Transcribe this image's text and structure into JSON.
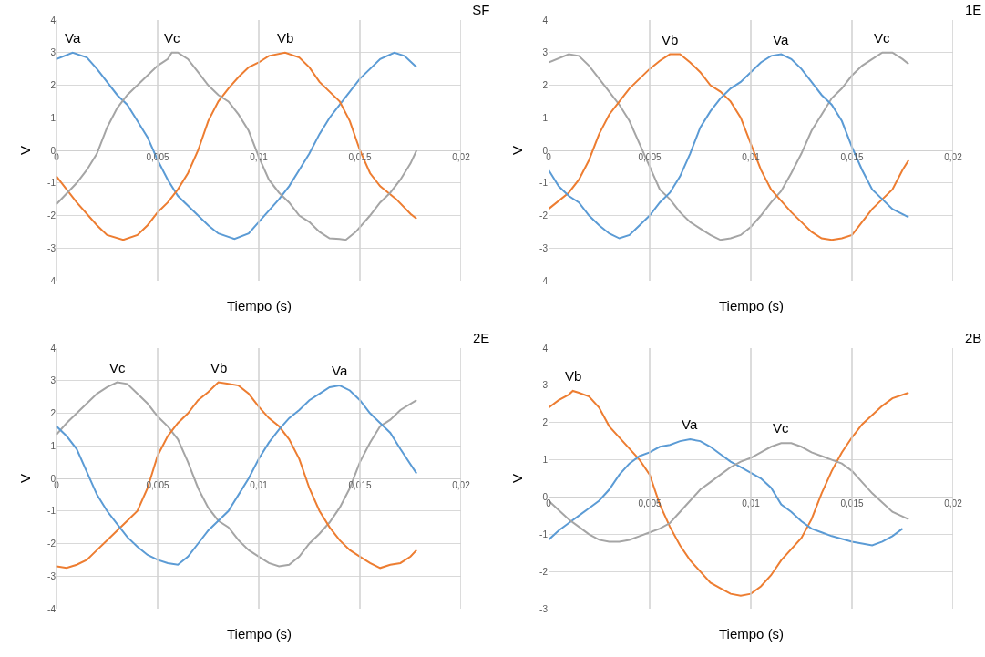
{
  "chart_data": [
    {
      "type": "line",
      "title": "SF",
      "xlabel": "Tiempo (s)",
      "ylabel": "V",
      "xlim": [
        0,
        0.02
      ],
      "xticks": [
        {
          "value": 0,
          "label": "0"
        },
        {
          "value": 0.005,
          "label": "0,005"
        },
        {
          "value": 0.01,
          "label": "0,01"
        },
        {
          "value": 0.015,
          "label": "0,015"
        },
        {
          "value": 0.02,
          "label": "0,02"
        }
      ],
      "ylim": [
        -4,
        4
      ],
      "yticks": [
        -4,
        -3,
        -2,
        -1,
        0,
        1,
        2,
        3,
        4
      ],
      "grid": true,
      "legend": false,
      "series": [
        {
          "name": "Va",
          "color": "#5b9bd5",
          "x": [
            0,
            0.0008,
            0.0015,
            0.002,
            0.003,
            0.0035,
            0.004,
            0.0045,
            0.005,
            0.0055,
            0.006,
            0.007,
            0.0075,
            0.008,
            0.0088,
            0.0095,
            0.01,
            0.011,
            0.0115,
            0.012,
            0.0125,
            0.013,
            0.0135,
            0.014,
            0.0145,
            0.015,
            0.0155,
            0.016,
            0.0167,
            0.0172,
            0.0178
          ],
          "values": [
            2.8,
            3.0,
            2.85,
            2.5,
            1.7,
            1.4,
            0.9,
            0.4,
            -0.3,
            -0.9,
            -1.4,
            -2.0,
            -2.3,
            -2.55,
            -2.72,
            -2.55,
            -2.2,
            -1.5,
            -1.1,
            -0.6,
            -0.1,
            0.5,
            1.0,
            1.4,
            1.8,
            2.2,
            2.5,
            2.8,
            3.0,
            2.9,
            2.55
          ]
        },
        {
          "name": "Vb",
          "color": "#ed7d31",
          "x": [
            0,
            0.001,
            0.002,
            0.0025,
            0.0033,
            0.004,
            0.0045,
            0.005,
            0.0055,
            0.006,
            0.0065,
            0.007,
            0.0075,
            0.008,
            0.0085,
            0.009,
            0.0095,
            0.01,
            0.0105,
            0.0113,
            0.012,
            0.0125,
            0.013,
            0.0135,
            0.014,
            0.0145,
            0.015,
            0.0155,
            0.016,
            0.0168,
            0.0175,
            0.0178
          ],
          "values": [
            -0.8,
            -1.6,
            -2.3,
            -2.6,
            -2.75,
            -2.6,
            -2.3,
            -1.9,
            -1.6,
            -1.2,
            -0.7,
            0.0,
            0.9,
            1.5,
            1.9,
            2.25,
            2.55,
            2.7,
            2.9,
            3.0,
            2.85,
            2.55,
            2.1,
            1.8,
            1.5,
            0.9,
            0.0,
            -0.7,
            -1.1,
            -1.5,
            -1.95,
            -2.1
          ]
        },
        {
          "name": "Vc",
          "color": "#a5a5a5",
          "x": [
            0,
            0.001,
            0.0015,
            0.002,
            0.0025,
            0.003,
            0.0035,
            0.004,
            0.0045,
            0.005,
            0.0055,
            0.0057,
            0.006,
            0.0065,
            0.007,
            0.0075,
            0.008,
            0.0085,
            0.009,
            0.0095,
            0.01,
            0.0105,
            0.011,
            0.0115,
            0.012,
            0.0125,
            0.013,
            0.0135,
            0.014,
            0.0143,
            0.0148,
            0.0155,
            0.016,
            0.0165,
            0.017,
            0.0175,
            0.0178
          ],
          "values": [
            -1.65,
            -1.0,
            -0.6,
            -0.1,
            0.7,
            1.3,
            1.7,
            2.0,
            2.3,
            2.6,
            2.8,
            3.0,
            3.0,
            2.8,
            2.4,
            2.0,
            1.7,
            1.5,
            1.1,
            0.6,
            -0.2,
            -0.9,
            -1.3,
            -1.6,
            -2.0,
            -2.2,
            -2.5,
            -2.7,
            -2.72,
            -2.75,
            -2.5,
            -2.0,
            -1.6,
            -1.3,
            -0.9,
            -0.4,
            0.0
          ]
        }
      ]
    },
    {
      "type": "line",
      "title": "1E",
      "xlabel": "Tiempo (s)",
      "ylabel": "V",
      "xlim": [
        0,
        0.02
      ],
      "xticks": [
        {
          "value": 0,
          "label": "0"
        },
        {
          "value": 0.005,
          "label": "0,005"
        },
        {
          "value": 0.01,
          "label": "0,01"
        },
        {
          "value": 0.015,
          "label": "0,015"
        },
        {
          "value": 0.02,
          "label": "0,02"
        }
      ],
      "ylim": [
        -4,
        4
      ],
      "yticks": [
        -4,
        -3,
        -2,
        -1,
        0,
        1,
        2,
        3,
        4
      ],
      "grid": true,
      "legend": false,
      "series": [
        {
          "name": "Vc",
          "color": "#a5a5a5",
          "x": [
            0,
            0.001,
            0.0015,
            0.002,
            0.0025,
            0.003,
            0.0035,
            0.004,
            0.0045,
            0.005,
            0.0055,
            0.006,
            0.0065,
            0.007,
            0.0075,
            0.008,
            0.0085,
            0.009,
            0.0095,
            0.01,
            0.0105,
            0.011,
            0.0115,
            0.012,
            0.0125,
            0.013,
            0.0135,
            0.014,
            0.0145,
            0.015,
            0.0155,
            0.016,
            0.0165,
            0.017,
            0.0175,
            0.0178
          ],
          "values": [
            2.7,
            2.95,
            2.9,
            2.6,
            2.2,
            1.8,
            1.4,
            0.9,
            0.2,
            -0.5,
            -1.2,
            -1.5,
            -1.9,
            -2.2,
            -2.4,
            -2.6,
            -2.75,
            -2.7,
            -2.6,
            -2.35,
            -2.0,
            -1.6,
            -1.25,
            -0.7,
            -0.1,
            0.6,
            1.1,
            1.6,
            1.9,
            2.3,
            2.6,
            2.8,
            3.0,
            3.0,
            2.8,
            2.65
          ]
        },
        {
          "name": "Vb",
          "color": "#ed7d31",
          "x": [
            0,
            0.001,
            0.0015,
            0.002,
            0.0025,
            0.003,
            0.0035,
            0.004,
            0.0045,
            0.005,
            0.0055,
            0.006,
            0.0065,
            0.007,
            0.0075,
            0.008,
            0.0085,
            0.009,
            0.0095,
            0.01,
            0.0105,
            0.011,
            0.0115,
            0.012,
            0.0125,
            0.013,
            0.0135,
            0.014,
            0.0145,
            0.015,
            0.0155,
            0.016,
            0.0165,
            0.017,
            0.0175,
            0.0178
          ],
          "values": [
            -1.8,
            -1.3,
            -0.9,
            -0.3,
            0.5,
            1.1,
            1.5,
            1.9,
            2.2,
            2.5,
            2.75,
            2.95,
            2.95,
            2.7,
            2.4,
            2.0,
            1.8,
            1.5,
            1.0,
            0.2,
            -0.6,
            -1.2,
            -1.55,
            -1.9,
            -2.2,
            -2.5,
            -2.7,
            -2.75,
            -2.7,
            -2.6,
            -2.2,
            -1.8,
            -1.5,
            -1.2,
            -0.6,
            -0.3
          ]
        },
        {
          "name": "Va",
          "color": "#5b9bd5",
          "x": [
            0,
            0.0005,
            0.001,
            0.0015,
            0.002,
            0.0025,
            0.003,
            0.0035,
            0.004,
            0.0045,
            0.005,
            0.0055,
            0.006,
            0.0065,
            0.007,
            0.0075,
            0.008,
            0.0085,
            0.009,
            0.0095,
            0.01,
            0.0105,
            0.011,
            0.0115,
            0.012,
            0.0125,
            0.013,
            0.0135,
            0.014,
            0.0145,
            0.015,
            0.0155,
            0.016,
            0.0165,
            0.017,
            0.0178
          ],
          "values": [
            -0.6,
            -1.1,
            -1.4,
            -1.6,
            -2.0,
            -2.3,
            -2.55,
            -2.7,
            -2.6,
            -2.3,
            -2.0,
            -1.6,
            -1.3,
            -0.8,
            -0.1,
            0.7,
            1.2,
            1.6,
            1.9,
            2.1,
            2.4,
            2.7,
            2.9,
            2.95,
            2.8,
            2.5,
            2.1,
            1.7,
            1.4,
            0.9,
            0.1,
            -0.6,
            -1.2,
            -1.5,
            -1.8,
            -2.05
          ]
        }
      ]
    },
    {
      "type": "line",
      "title": "2E",
      "xlabel": "Tiempo (s)",
      "ylabel": "V",
      "xlim": [
        0,
        0.02
      ],
      "xticks": [
        {
          "value": 0,
          "label": "0"
        },
        {
          "value": 0.005,
          "label": "0,005"
        },
        {
          "value": 0.01,
          "label": "0,01"
        },
        {
          "value": 0.015,
          "label": "0,015"
        },
        {
          "value": 0.02,
          "label": "0,02"
        }
      ],
      "ylim": [
        -4,
        4
      ],
      "yticks": [
        -4,
        -3,
        -2,
        -1,
        0,
        1,
        2,
        3,
        4
      ],
      "grid": true,
      "legend": false,
      "series": [
        {
          "name": "Vc",
          "color": "#a5a5a5",
          "x": [
            0,
            0.0005,
            0.001,
            0.0015,
            0.002,
            0.0025,
            0.003,
            0.0035,
            0.004,
            0.0045,
            0.005,
            0.0055,
            0.006,
            0.0065,
            0.007,
            0.0075,
            0.008,
            0.0085,
            0.009,
            0.0095,
            0.01,
            0.0105,
            0.011,
            0.0115,
            0.012,
            0.0125,
            0.013,
            0.0135,
            0.014,
            0.0145,
            0.015,
            0.0155,
            0.016,
            0.0165,
            0.017,
            0.0178
          ],
          "values": [
            1.35,
            1.7,
            2.0,
            2.3,
            2.6,
            2.8,
            2.95,
            2.9,
            2.6,
            2.3,
            1.9,
            1.6,
            1.2,
            0.5,
            -0.3,
            -0.9,
            -1.3,
            -1.5,
            -1.9,
            -2.2,
            -2.4,
            -2.6,
            -2.7,
            -2.65,
            -2.4,
            -2.0,
            -1.7,
            -1.35,
            -0.9,
            -0.3,
            0.5,
            1.1,
            1.6,
            1.8,
            2.1,
            2.4
          ]
        },
        {
          "name": "Vb",
          "color": "#ed7d31",
          "x": [
            0,
            0.0005,
            0.001,
            0.0015,
            0.002,
            0.0025,
            0.003,
            0.0035,
            0.004,
            0.0045,
            0.005,
            0.0055,
            0.006,
            0.0065,
            0.007,
            0.0075,
            0.008,
            0.0085,
            0.009,
            0.0095,
            0.01,
            0.0105,
            0.011,
            0.0115,
            0.012,
            0.0125,
            0.013,
            0.0135,
            0.014,
            0.0145,
            0.015,
            0.0155,
            0.016,
            0.0165,
            0.017,
            0.0175,
            0.0178
          ],
          "values": [
            -2.7,
            -2.75,
            -2.65,
            -2.5,
            -2.2,
            -1.9,
            -1.6,
            -1.3,
            -1.0,
            -0.3,
            0.7,
            1.3,
            1.7,
            2.0,
            2.4,
            2.65,
            2.95,
            2.9,
            2.85,
            2.6,
            2.2,
            1.85,
            1.6,
            1.2,
            0.6,
            -0.3,
            -1.0,
            -1.5,
            -1.9,
            -2.2,
            -2.4,
            -2.6,
            -2.75,
            -2.65,
            -2.6,
            -2.4,
            -2.2
          ]
        },
        {
          "name": "Va",
          "color": "#5b9bd5",
          "x": [
            0,
            0.0005,
            0.001,
            0.0015,
            0.002,
            0.0025,
            0.003,
            0.0035,
            0.004,
            0.0045,
            0.005,
            0.0055,
            0.006,
            0.0065,
            0.007,
            0.0075,
            0.008,
            0.0085,
            0.009,
            0.0095,
            0.01,
            0.0105,
            0.011,
            0.0115,
            0.012,
            0.0125,
            0.013,
            0.0135,
            0.014,
            0.0145,
            0.015,
            0.0155,
            0.016,
            0.0165,
            0.017,
            0.0178
          ],
          "values": [
            1.6,
            1.3,
            0.9,
            0.2,
            -0.5,
            -1.0,
            -1.4,
            -1.8,
            -2.1,
            -2.35,
            -2.5,
            -2.6,
            -2.65,
            -2.4,
            -2.0,
            -1.6,
            -1.3,
            -1.0,
            -0.5,
            0.0,
            0.6,
            1.1,
            1.5,
            1.85,
            2.1,
            2.4,
            2.6,
            2.8,
            2.85,
            2.7,
            2.4,
            2.0,
            1.7,
            1.4,
            0.9,
            0.15
          ]
        }
      ]
    },
    {
      "type": "line",
      "title": "2B",
      "xlabel": "Tiempo (s)",
      "ylabel": "V",
      "xlim": [
        0,
        0.02
      ],
      "xticks": [
        {
          "value": 0,
          "label": "0"
        },
        {
          "value": 0.005,
          "label": "0,005"
        },
        {
          "value": 0.01,
          "label": "0,01"
        },
        {
          "value": 0.015,
          "label": "0,015"
        },
        {
          "value": 0.02,
          "label": "0,02"
        }
      ],
      "ylim": [
        -3,
        4
      ],
      "yticks": [
        -3,
        -2,
        -1,
        0,
        1,
        2,
        3,
        4
      ],
      "grid": true,
      "legend": false,
      "series": [
        {
          "name": "Vb",
          "color": "#ed7d31",
          "x": [
            0,
            0.0005,
            0.001,
            0.0012,
            0.0015,
            0.002,
            0.0025,
            0.003,
            0.0035,
            0.004,
            0.0045,
            0.005,
            0.0055,
            0.006,
            0.0065,
            0.007,
            0.0075,
            0.008,
            0.0085,
            0.009,
            0.0095,
            0.01,
            0.0105,
            0.011,
            0.0115,
            0.012,
            0.0125,
            0.013,
            0.0135,
            0.014,
            0.0145,
            0.015,
            0.0155,
            0.016,
            0.0165,
            0.017,
            0.0178
          ],
          "values": [
            2.4,
            2.6,
            2.75,
            2.85,
            2.8,
            2.7,
            2.4,
            1.9,
            1.6,
            1.3,
            1.0,
            0.6,
            -0.2,
            -0.8,
            -1.3,
            -1.7,
            -2.0,
            -2.3,
            -2.45,
            -2.6,
            -2.65,
            -2.6,
            -2.4,
            -2.1,
            -1.7,
            -1.4,
            -1.1,
            -0.6,
            0.1,
            0.7,
            1.2,
            1.6,
            1.95,
            2.2,
            2.45,
            2.65,
            2.8
          ]
        },
        {
          "name": "Va",
          "color": "#5b9bd5",
          "x": [
            0,
            0.0005,
            0.001,
            0.0015,
            0.002,
            0.0025,
            0.003,
            0.0035,
            0.004,
            0.0045,
            0.005,
            0.0055,
            0.006,
            0.0065,
            0.007,
            0.0075,
            0.008,
            0.0085,
            0.009,
            0.0095,
            0.01,
            0.0105,
            0.011,
            0.0115,
            0.012,
            0.0125,
            0.013,
            0.0135,
            0.014,
            0.015,
            0.016,
            0.0165,
            0.017,
            0.0175
          ],
          "values": [
            -1.15,
            -0.9,
            -0.7,
            -0.5,
            -0.3,
            -0.1,
            0.2,
            0.6,
            0.9,
            1.1,
            1.2,
            1.35,
            1.4,
            1.5,
            1.55,
            1.5,
            1.35,
            1.15,
            0.95,
            0.8,
            0.65,
            0.5,
            0.25,
            -0.2,
            -0.4,
            -0.65,
            -0.85,
            -0.95,
            -1.05,
            -1.2,
            -1.3,
            -1.2,
            -1.05,
            -0.85
          ]
        },
        {
          "name": "Vc",
          "color": "#a5a5a5",
          "x": [
            0,
            0.0005,
            0.001,
            0.0015,
            0.002,
            0.0025,
            0.003,
            0.0035,
            0.004,
            0.0045,
            0.005,
            0.0055,
            0.006,
            0.0065,
            0.007,
            0.0075,
            0.008,
            0.0085,
            0.009,
            0.0095,
            0.01,
            0.0105,
            0.011,
            0.0115,
            0.012,
            0.0125,
            0.013,
            0.0135,
            0.014,
            0.0145,
            0.015,
            0.0155,
            0.016,
            0.0165,
            0.017,
            0.0178
          ],
          "values": [
            -0.1,
            -0.35,
            -0.6,
            -0.8,
            -1.0,
            -1.15,
            -1.2,
            -1.2,
            -1.15,
            -1.05,
            -0.95,
            -0.85,
            -0.7,
            -0.4,
            -0.1,
            0.2,
            0.4,
            0.6,
            0.8,
            0.95,
            1.05,
            1.2,
            1.35,
            1.45,
            1.45,
            1.35,
            1.2,
            1.1,
            1.0,
            0.9,
            0.7,
            0.4,
            0.1,
            -0.15,
            -0.4,
            -0.6
          ]
        }
      ]
    }
  ]
}
